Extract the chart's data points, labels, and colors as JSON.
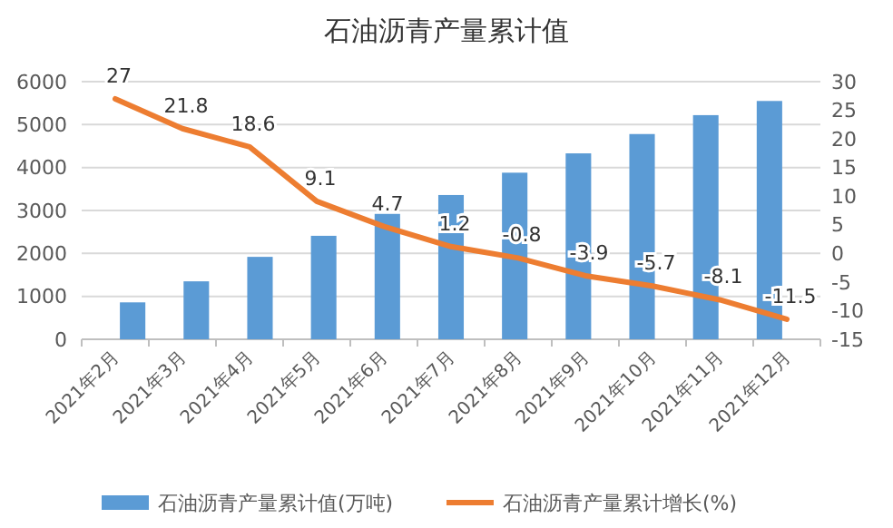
{
  "chart_data": {
    "type": "bar",
    "title": "石油沥青产量累计值",
    "categories": [
      "2021年2月",
      "2021年3月",
      "2021年4月",
      "2021年5月",
      "2021年6月",
      "2021年7月",
      "2021年8月",
      "2021年9月",
      "2021年10月",
      "2021年11月",
      "2021年12月"
    ],
    "series": [
      {
        "name": "石油沥青产量累计值(万吨)",
        "color": "#5b9bd5",
        "values": [
          860,
          1350,
          1920,
          2410,
          2920,
          3360,
          3880,
          4330,
          4780,
          5220,
          5550
        ]
      },
      {
        "name": "石油沥青产量累计增长(%)",
        "type": "line",
        "axis": "y2",
        "color": "#ed7d31",
        "values": [
          27,
          21.8,
          18.6,
          9.1,
          4.7,
          1.2,
          -0.8,
          -3.9,
          -5.7,
          -8.1,
          -11.5
        ],
        "value_labels": [
          "27",
          "21.8",
          "18.6",
          "9.1",
          "4.7",
          "1.2",
          "-0.8",
          "-3.9",
          "-5.7",
          "-8.1",
          "-11.5"
        ]
      }
    ],
    "ylim": [
      0,
      6000
    ],
    "yticks": [
      0,
      1000,
      2000,
      3000,
      4000,
      5000,
      6000
    ],
    "y2lim": [
      -15,
      30
    ],
    "y2ticks": [
      -15,
      -10,
      -5,
      0,
      5,
      10,
      15,
      20,
      25,
      30
    ],
    "grid": "y",
    "legend": "bottom"
  }
}
